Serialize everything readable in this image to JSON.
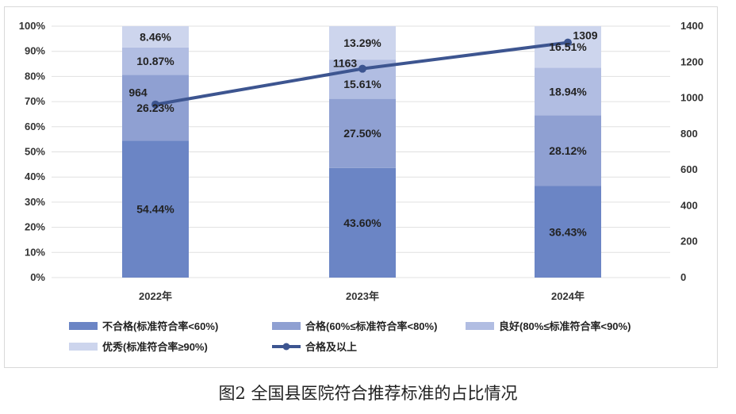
{
  "chart_data": {
    "type": "bar",
    "stacked": true,
    "categories": [
      "2022年",
      "2023年",
      "2024年"
    ],
    "series": [
      {
        "name": "不合格(标准符合率<60%)",
        "values": [
          54.44,
          43.6,
          36.43
        ],
        "labels": [
          "54.44%",
          "43.60%",
          "36.43%"
        ],
        "color": "#6b85c5"
      },
      {
        "name": "合格(60%≤标准符合率<80%)",
        "values": [
          26.23,
          27.5,
          28.12
        ],
        "labels": [
          "26.23%",
          "27.50%",
          "28.12%"
        ],
        "color": "#8fa0d2"
      },
      {
        "name": "良好(80%≤标准符合率<90%)",
        "values": [
          10.87,
          15.61,
          18.94
        ],
        "labels": [
          "10.87%",
          "15.61%",
          "18.94%"
        ],
        "color": "#b1bde2"
      },
      {
        "name": "优秀(标准符合率≥90%)",
        "values": [
          8.46,
          13.29,
          16.51
        ],
        "labels": [
          "8.46%",
          "13.29%",
          "16.51%"
        ],
        "color": "#cdd5ed"
      }
    ],
    "line_series": {
      "name": "合格及以上",
      "values": [
        964,
        1163,
        1309
      ],
      "labels": [
        "964",
        "1163",
        "1309"
      ],
      "color": "#3d5590",
      "axis": "right"
    },
    "y_left": {
      "range": [
        0,
        100
      ],
      "ticks": [
        "0%",
        "10%",
        "20%",
        "30%",
        "40%",
        "50%",
        "60%",
        "70%",
        "80%",
        "90%",
        "100%"
      ]
    },
    "y_right": {
      "range": [
        0,
        1400
      ],
      "ticks": [
        "0",
        "200",
        "400",
        "600",
        "800",
        "1000",
        "1200",
        "1400"
      ]
    },
    "grid": true,
    "legend_position": "bottom"
  },
  "caption": "图2  全国县医院符合推荐标准的占比情况"
}
